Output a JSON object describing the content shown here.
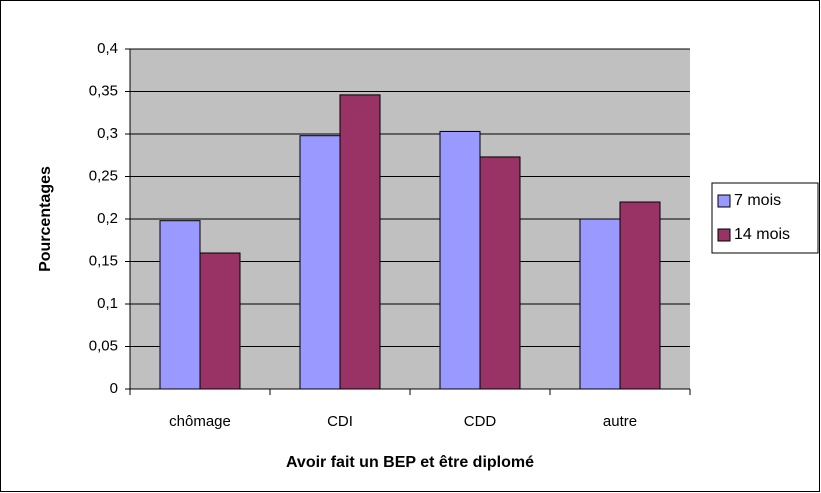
{
  "chart_data": {
    "type": "bar",
    "x_label": "Avoir fait un BEP et être diplomé",
    "y_label": "Pourcentages",
    "categories": [
      "chômage",
      "CDI",
      "CDD",
      "autre"
    ],
    "series": [
      {
        "name": "7 mois",
        "color": "#9999ff",
        "values": [
          0.198,
          0.298,
          0.303,
          0.2
        ]
      },
      {
        "name": "14 mois",
        "color": "#993366",
        "values": [
          0.16,
          0.346,
          0.273,
          0.22
        ]
      }
    ],
    "ylim": [
      0,
      0.4
    ],
    "yticks": [
      0,
      {
        "value": 0.05,
        "label": "0,05"
      },
      {
        "value": 0.1,
        "label": "0,1"
      },
      {
        "value": 0.15,
        "label": "0,15"
      },
      {
        "value": 0.2,
        "label": "0,2"
      },
      {
        "value": 0.25,
        "label": "0,25"
      },
      {
        "value": 0.3,
        "label": "0,3"
      },
      {
        "value": 0.35,
        "label": "0,35"
      },
      {
        "value": 0.4,
        "label": "0,4"
      }
    ],
    "grid": true,
    "legend": "right",
    "plot_background": "#c0c0c0"
  }
}
